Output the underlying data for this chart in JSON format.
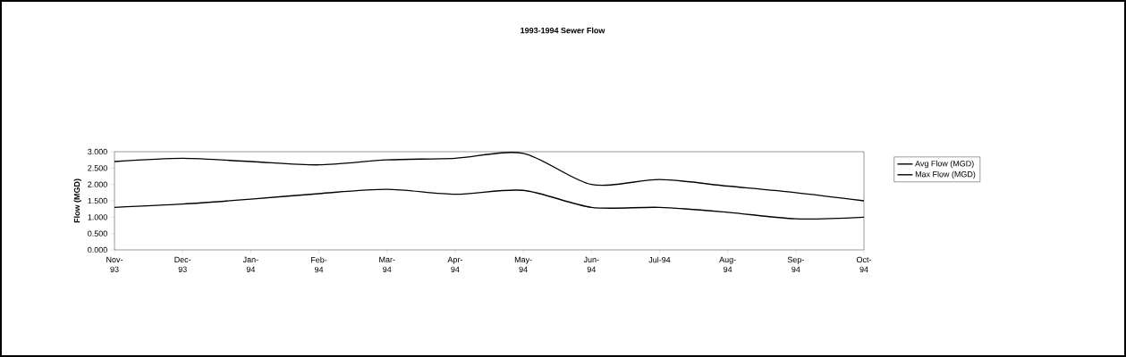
{
  "chart_data": {
    "type": "line",
    "title": "1993-1994 Sewer Flow",
    "ylabel": "Flow (MGD)",
    "categories": [
      "Nov-93",
      "Dec-93",
      "Jan-94",
      "Feb-94",
      "Mar-94",
      "Apr-94",
      "May-94",
      "Jun-94",
      "Jul-94",
      "Aug-94",
      "Sep-94",
      "Oct-94"
    ],
    "series": [
      {
        "name": "Avg Flow (MGD)",
        "color": "#000000",
        "values": [
          1.3,
          1.4,
          1.55,
          1.72,
          1.85,
          1.7,
          1.82,
          1.3,
          1.3,
          1.15,
          0.95,
          1.0
        ]
      },
      {
        "name": "Max Flow (MGD)",
        "color": "#000000",
        "values": [
          2.7,
          2.8,
          2.7,
          2.6,
          2.75,
          2.8,
          2.95,
          2.0,
          2.15,
          1.95,
          1.75,
          1.5
        ]
      }
    ],
    "ylim": [
      0,
      3
    ],
    "yticks": [
      {
        "value": 0,
        "label": "0.000"
      },
      {
        "value": 0.5,
        "label": "0.500"
      },
      {
        "value": 1,
        "label": "1.000"
      },
      {
        "value": 1.5,
        "label": "1.500"
      },
      {
        "value": 2,
        "label": "2.000"
      },
      {
        "value": 2.5,
        "label": "2.500"
      },
      {
        "value": 3,
        "label": "3.000"
      }
    ],
    "grid": false,
    "legend": "right",
    "marker": "none",
    "line_style": "solid"
  }
}
